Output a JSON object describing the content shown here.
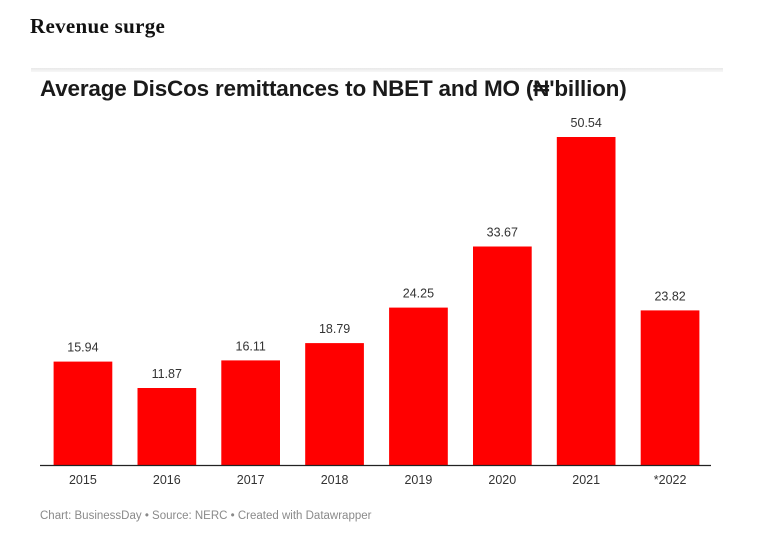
{
  "page": {
    "heading": "Revenue surge"
  },
  "chart_data": {
    "type": "bar",
    "title": "Average DisCos remittances to NBET and MO (₦'billion)",
    "categories": [
      "2015",
      "2016",
      "2017",
      "2018",
      "2019",
      "2020",
      "2021",
      "*2022"
    ],
    "values": [
      15.94,
      11.87,
      16.11,
      18.79,
      24.25,
      33.67,
      50.54,
      23.82
    ],
    "value_labels": [
      "15.94",
      "11.87",
      "16.11",
      "18.79",
      "24.25",
      "33.67",
      "50.54",
      "23.82"
    ],
    "xlabel": "",
    "ylabel": "",
    "ylim": [
      0,
      50.54
    ],
    "grid": false,
    "legend": "none",
    "bar_color": "#ff0000",
    "footer": "Chart: BusinessDay • Source: NERC • Created with Datawrapper"
  }
}
